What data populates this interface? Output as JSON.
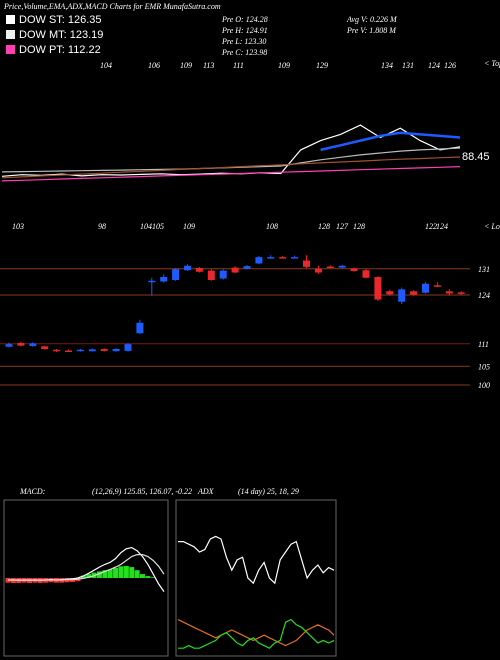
{
  "header": {
    "title": "Price,Volume,EMA,ADX,MACD Charts for EMR MunafaSutra.com",
    "legend": [
      "DOW ST: 126.35",
      "DOW MT: 123.19",
      "DOW PT: 112.22"
    ],
    "info": [
      "Pre O: 124.28",
      "Pre H: 124.91",
      "Pre L: 123.30",
      "Pre C: 123.98",
      "Avg V: 0.226 M",
      "Pre V: 1.808 M"
    ]
  },
  "chart_data": [
    {
      "type": "line",
      "tops_label": "< Tops",
      "lows_label": "< Lows",
      "last_value": 88.45,
      "tops": [
        104,
        106,
        109,
        113,
        111,
        109,
        129,
        134,
        131,
        124,
        126
      ],
      "lows": [
        103,
        98,
        104,
        105,
        109,
        108,
        128,
        127,
        128,
        122,
        124
      ],
      "categories": [
        null,
        null,
        null,
        null,
        null,
        null,
        null,
        null,
        null,
        null,
        null,
        null,
        null,
        null,
        null,
        null,
        null,
        null,
        null,
        null,
        null,
        null,
        null,
        null
      ],
      "ylim": [
        95,
        145
      ],
      "series": [
        {
          "color": "#ffffff",
          "values": [
            107.5,
            108,
            107.8,
            108.2,
            107.6,
            108,
            107.9,
            108.1,
            108.3,
            108,
            108.2,
            108.5,
            108.3,
            108.6,
            108.4,
            116,
            119,
            121,
            124,
            120,
            123,
            119,
            116,
            117
          ]
        },
        {
          "color": "#1e5bff",
          "values": [
            null,
            null,
            null,
            null,
            null,
            null,
            null,
            null,
            null,
            null,
            null,
            null,
            null,
            null,
            null,
            null,
            116,
            117.5,
            119,
            120.5,
            121.5,
            121,
            120.5,
            120
          ]
        },
        {
          "color": "#bbbbbb",
          "values": [
            108.9,
            109,
            109.1,
            109.2,
            109.3,
            109.4,
            109.5,
            109.6,
            109.7,
            109.8,
            110,
            110.2,
            110.4,
            110.6,
            110.8,
            111.8,
            112.8,
            113.6,
            114.4,
            115,
            115.6,
            116,
            116.3,
            116.6
          ]
        },
        {
          "color": "#a0522d",
          "values": [
            107,
            107.3,
            107.6,
            107.9,
            108.2,
            108.5,
            108.8,
            109.1,
            109.4,
            109.7,
            110,
            110.3,
            110.6,
            110.9,
            111.2,
            111.5,
            111.8,
            112.1,
            112.4,
            112.7,
            113,
            113.2,
            113.5,
            113.7
          ]
        },
        {
          "color": "#ff3fb4",
          "values": [
            106,
            106.2,
            106.4,
            106.6,
            106.8,
            107,
            107.2,
            107.4,
            107.6,
            107.8,
            108,
            108.2,
            108.4,
            108.6,
            108.8,
            109,
            109.2,
            109.4,
            109.6,
            109.8,
            110,
            110.2,
            110.4,
            110.6
          ]
        }
      ]
    },
    {
      "type": "candlestick",
      "categories": [
        null,
        null,
        null,
        null,
        null,
        null,
        null,
        null,
        null,
        null,
        null,
        null,
        null,
        null,
        null,
        null,
        null,
        null,
        null,
        null,
        null,
        null,
        null,
        null,
        null,
        null,
        null,
        null,
        null,
        null,
        null,
        null,
        null,
        null,
        null,
        null,
        null,
        null,
        null
      ],
      "open": [
        110.2,
        111.2,
        110.4,
        110.3,
        109.4,
        109.2,
        109.0,
        109.0,
        109.6,
        109.0,
        109.1,
        113.8,
        127.5,
        127.6,
        128.0,
        130.6,
        131.2,
        130.5,
        128.4,
        131.3,
        131.0,
        132.4,
        134.0,
        134.1,
        134.0,
        133.2,
        131.0,
        131.6,
        131.3,
        131.1,
        130.6,
        128.8,
        125.0,
        122.2,
        125.0,
        124.6,
        126.6,
        125.0,
        124.7
      ],
      "high": [
        111.3,
        111.5,
        111.4,
        110.5,
        109.6,
        109.5,
        109.6,
        109.7,
        109.8,
        109.8,
        111.2,
        117.4,
        128.6,
        129.5,
        131.2,
        132.2,
        131.5,
        130.9,
        130.8,
        131.7,
        132.0,
        134.4,
        134.6,
        134.4,
        134.5,
        134.6,
        131.8,
        131.9,
        132.0,
        131.3,
        130.9,
        129.0,
        125.4,
        126.0,
        125.3,
        127.4,
        127.4,
        125.6,
        125.0
      ],
      "low": [
        110.0,
        110.3,
        110.2,
        109.4,
        108.8,
        108.8,
        108.9,
        108.9,
        108.9,
        108.9,
        108.9,
        113.6,
        123.8,
        127.3,
        127.8,
        130.4,
        130.0,
        127.8,
        128.1,
        129.8,
        130.8,
        132.2,
        133.8,
        133.8,
        133.8,
        131.2,
        129.6,
        131.2,
        131.1,
        130.2,
        128.4,
        122.4,
        123.8,
        121.6,
        123.8,
        124.4,
        126.1,
        123.8,
        124.0
      ],
      "close": [
        110.9,
        110.5,
        111.1,
        109.6,
        109.0,
        108.9,
        109.4,
        109.5,
        109.1,
        109.6,
        110.9,
        116.6,
        127.8,
        128.8,
        130.9,
        131.8,
        130.2,
        128.0,
        130.5,
        130.0,
        131.7,
        134.1,
        134.1,
        134.0,
        134.1,
        131.5,
        130.0,
        131.5,
        131.8,
        130.4,
        128.6,
        122.8,
        124.2,
        125.5,
        124.1,
        127.0,
        126.4,
        124.4,
        124.6
      ],
      "up_color": "#1e5bff",
      "down_color": "#e8282b",
      "ylim": [
        96,
        136
      ],
      "yticks": [
        131,
        124,
        111,
        105,
        100
      ],
      "grid": true
    },
    {
      "type": "macd",
      "title": "MACD:",
      "subtitle": "(12,26,9) 125.85, 126.07, -0.22",
      "categories": [
        null,
        null,
        null,
        null,
        null,
        null,
        null,
        null,
        null,
        null,
        null,
        null,
        null,
        null,
        null,
        null,
        null,
        null,
        null,
        null,
        null,
        null,
        null,
        null,
        null,
        null,
        null,
        null,
        null,
        null
      ],
      "ylim": [
        -2,
        2
      ],
      "series": [
        {
          "color": "#ffffff",
          "values": [
            -0.05,
            -0.05,
            -0.06,
            -0.05,
            -0.06,
            -0.05,
            -0.06,
            -0.05,
            -0.04,
            -0.05,
            -0.04,
            -0.03,
            -0.02,
            0.0,
            0.05,
            0.12,
            0.2,
            0.28,
            0.35,
            0.4,
            0.5,
            0.65,
            0.75,
            0.78,
            0.7,
            0.55,
            0.35,
            0.1,
            -0.15,
            -0.35
          ]
        },
        {
          "color": "#dddddd",
          "values": [
            -0.05,
            -0.05,
            -0.05,
            -0.05,
            -0.05,
            -0.05,
            -0.05,
            -0.05,
            -0.05,
            -0.05,
            -0.05,
            -0.04,
            -0.04,
            -0.03,
            -0.01,
            0.02,
            0.06,
            0.11,
            0.17,
            0.22,
            0.28,
            0.35,
            0.45,
            0.55,
            0.6,
            0.6,
            0.55,
            0.45,
            0.3,
            0.1
          ]
        }
      ],
      "histogram": [
        -0.12,
        -0.13,
        -0.13,
        -0.12,
        -0.13,
        -0.12,
        -0.13,
        -0.12,
        -0.11,
        -0.12,
        -0.12,
        -0.11,
        -0.1,
        -0.08,
        0.06,
        0.1,
        0.14,
        0.17,
        0.2,
        0.22,
        0.26,
        0.3,
        0.31,
        0.28,
        0.2,
        0.1,
        0.05,
        0.02,
        0,
        0
      ],
      "up_color": "#22e01a",
      "down_color": "#ff3030"
    },
    {
      "type": "adx",
      "title": "ADX",
      "subtitle": "(14 day) 25, 18, 29",
      "categories": [
        null,
        null,
        null,
        null,
        null,
        null,
        null,
        null,
        null,
        null,
        null,
        null,
        null,
        null,
        null,
        null,
        null,
        null,
        null,
        null,
        null,
        null,
        null,
        null,
        null,
        null,
        null,
        null,
        null,
        null
      ],
      "ylim": [
        0,
        60
      ],
      "series": [
        {
          "color": "#ffffff",
          "values": [
            44,
            44,
            43,
            42,
            40,
            41,
            45,
            46,
            45,
            38,
            33,
            37,
            38,
            30,
            28,
            33,
            36,
            30,
            28,
            37,
            40,
            43,
            44,
            37,
            30,
            33,
            35,
            32,
            34,
            33
          ]
        },
        {
          "color": "#e07020",
          "values": [
            14,
            13,
            12,
            11,
            10,
            9,
            8,
            7,
            8,
            9,
            10,
            9,
            8,
            7,
            6,
            7,
            8,
            7,
            6,
            5,
            4,
            5,
            6,
            8,
            10,
            11,
            12,
            11,
            10,
            8
          ]
        },
        {
          "color": "#22e01a",
          "values": [
            3,
            3,
            4,
            3,
            3,
            4,
            5,
            6,
            8,
            9,
            7,
            5,
            4,
            6,
            7,
            5,
            4,
            3,
            5,
            6,
            13,
            14,
            12,
            11,
            9,
            7,
            5,
            6,
            5,
            6
          ]
        }
      ]
    }
  ]
}
